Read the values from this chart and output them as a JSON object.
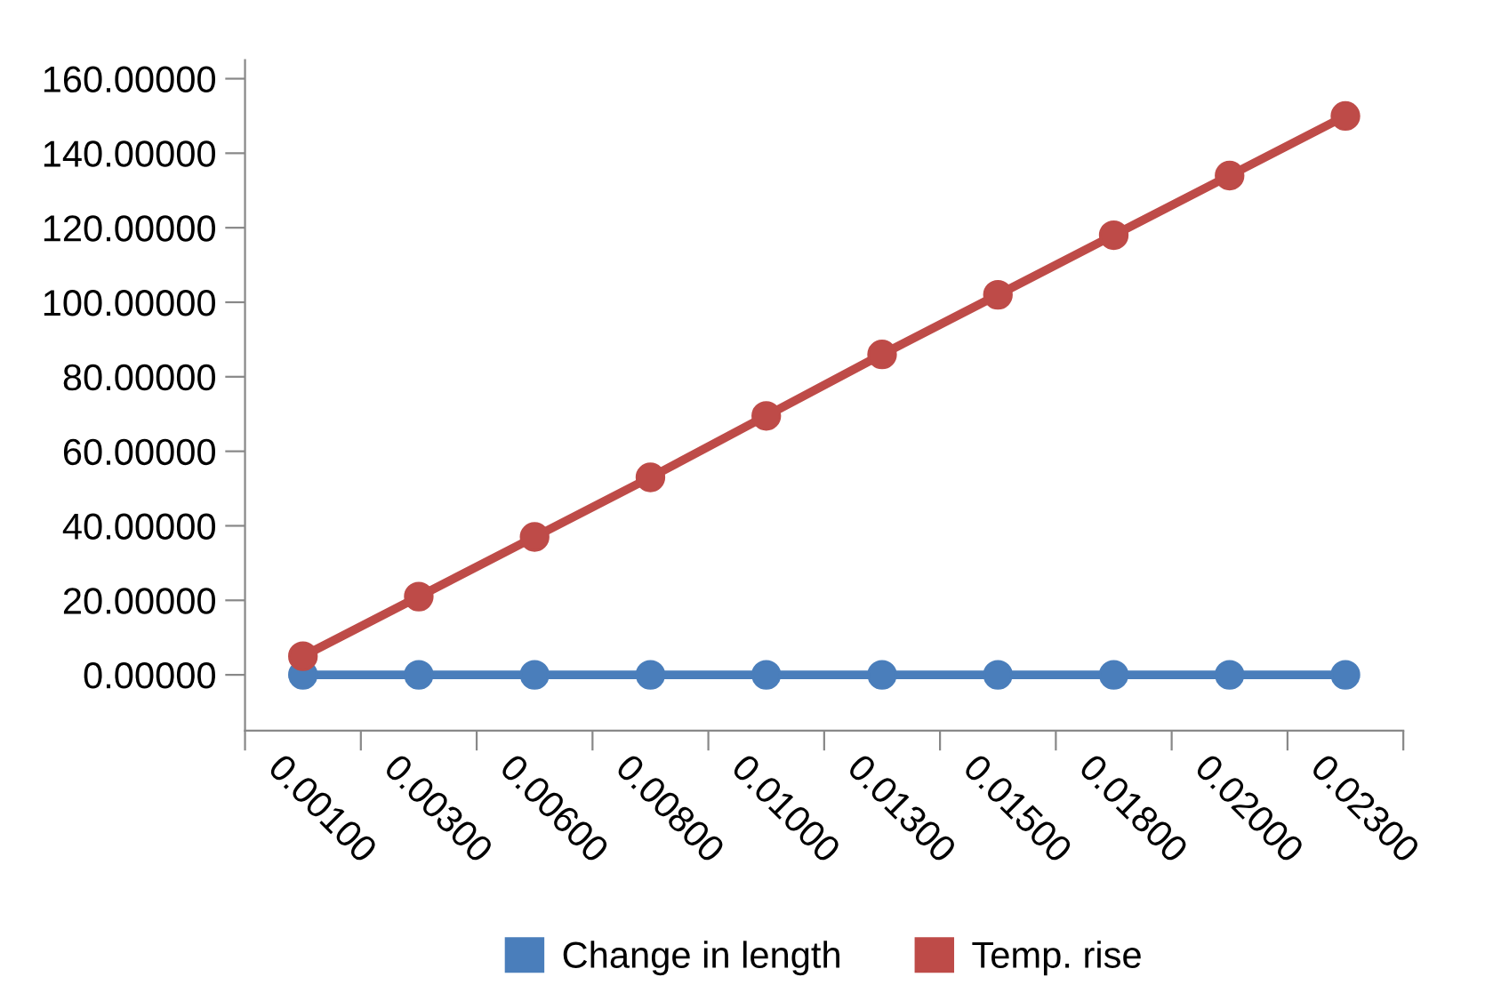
{
  "chart_data": {
    "type": "line",
    "categories": [
      "0.00100",
      "0.00300",
      "0.00600",
      "0.00800",
      "0.01000",
      "0.01300",
      "0.01500",
      "0.01800",
      "0.02000",
      "0.02300"
    ],
    "series": [
      {
        "name": "Change in length",
        "color": "#4a7ebb",
        "values": [
          0,
          0,
          0,
          0,
          0,
          0,
          0,
          0,
          0,
          0
        ]
      },
      {
        "name": "Temp. rise",
        "color": "#be4b48",
        "values": [
          5,
          21,
          37,
          53,
          69.5,
          86,
          102,
          118,
          134,
          150
        ]
      }
    ],
    "ylim": [
      -15,
      165
    ],
    "yticks": [
      {
        "value": 0,
        "label": "0.00000"
      },
      {
        "value": 20,
        "label": "20.00000"
      },
      {
        "value": 40,
        "label": "40.00000"
      },
      {
        "value": 60,
        "label": "60.00000"
      },
      {
        "value": 80,
        "label": "80.00000"
      },
      {
        "value": 100,
        "label": "100.00000"
      },
      {
        "value": 120,
        "label": "120.00000"
      },
      {
        "value": 140,
        "label": "140.00000"
      },
      {
        "value": 160,
        "label": "160.00000"
      }
    ],
    "grid": false,
    "legend": "bottom",
    "marker": "circle",
    "line_style": "solid"
  }
}
